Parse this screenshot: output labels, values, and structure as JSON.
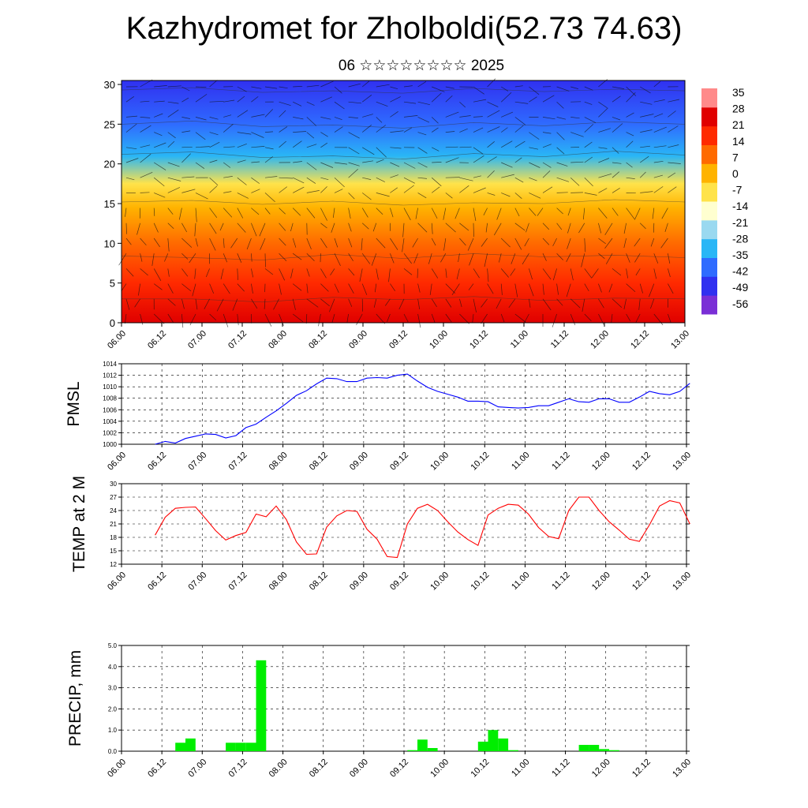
{
  "title": "Kazhydromet for Zholboldi(52.73 74.63)",
  "subtitle": "06 ☆☆☆☆☆☆☆☆ 2025",
  "chart_data": [
    {
      "type": "heatmap",
      "yticks": [
        "0",
        "5",
        "10",
        "15",
        "20",
        "25",
        "30"
      ],
      "ylim": [
        0,
        30.5
      ],
      "xticks": [
        "06.00",
        "06.12",
        "07.00",
        "07.12",
        "08.00",
        "08.12",
        "09.00",
        "09.12",
        "10.00",
        "10.12",
        "11.00",
        "11.12",
        "12.00",
        "12.12",
        "13.00"
      ],
      "colorbar_labels": [
        "35",
        "28",
        "21",
        "14",
        "7",
        "0",
        "-7",
        "-14",
        "-21",
        "-28",
        "-35",
        "-42",
        "-49",
        "-56"
      ],
      "colormap": [
        "#7a2fd6",
        "#3030f0",
        "#2f6bff",
        "#29b6f6",
        "#9ad9f0",
        "#ffffd0",
        "#ffe34a",
        "#ffb300",
        "#ff6a00",
        "#ff2a00",
        "#e00000",
        "#ff8a8a"
      ],
      "isotherm_temps": [
        14,
        0,
        -14,
        -28,
        -42,
        -56
      ],
      "isotherm_heights": [
        [
          3,
          8.4,
          15.2,
          21.2,
          25,
          29.3
        ],
        [
          3,
          8.2,
          15.4,
          21.5,
          25.4,
          29.6
        ],
        [
          2.6,
          7.9,
          14.9,
          20.8,
          24.7,
          29
        ],
        [
          3.2,
          8.6,
          15.3,
          21,
          24.9,
          29.2
        ],
        [
          2.9,
          8.1,
          14.8,
          20.6,
          24.5,
          28.9
        ],
        [
          3.3,
          8.7,
          15.1,
          21.3,
          25.2,
          29.5
        ],
        [
          2.8,
          8.3,
          15,
          20.9,
          24.8,
          29.1
        ],
        [
          3.1,
          8.5,
          15.5,
          21.6,
          25.3,
          29.4
        ],
        [
          3,
          8.2,
          15.2,
          21.1,
          25,
          29.2
        ]
      ]
    },
    {
      "type": "line",
      "ylabel": "PMSL",
      "ylim": [
        1000,
        1014
      ],
      "yticks": [
        "1000",
        "1002",
        "1004",
        "1006",
        "1008",
        "1010",
        "1012",
        "1014"
      ],
      "xticks": [
        "06.00",
        "06.12",
        "07.00",
        "07.12",
        "08.00",
        "08.12",
        "09.00",
        "09.12",
        "10.00",
        "10.12",
        "11.00",
        "11.12",
        "12.00",
        "12.12",
        "13.00"
      ],
      "color": "#0000ff",
      "x_hours": [
        0,
        3,
        6,
        9,
        12,
        15,
        18,
        21,
        24,
        27,
        30,
        33,
        36,
        39,
        42,
        45,
        48,
        51,
        54,
        57,
        60,
        63,
        66,
        69,
        72,
        75,
        78,
        81,
        84,
        87,
        90,
        93,
        96,
        99,
        102,
        105,
        108,
        111,
        114,
        117,
        120,
        123,
        126,
        129,
        132,
        135,
        138,
        141,
        144,
        147,
        150,
        153,
        156,
        159
      ],
      "values": [
        1000,
        1000.5,
        1000.2,
        1001,
        1001.4,
        1001.8,
        1001.7,
        1001.1,
        1001.5,
        1002.9,
        1003.5,
        1004.7,
        1005.8,
        1007.1,
        1008.5,
        1009.3,
        1010.5,
        1011.5,
        1011.4,
        1010.9,
        1010.9,
        1011.5,
        1011.6,
        1011.5,
        1012,
        1012.2,
        1011,
        1009.9,
        1009.2,
        1008.7,
        1008.2,
        1007.5,
        1007.5,
        1007.4,
        1006.5,
        1006.4,
        1006.3,
        1006.4,
        1006.7,
        1006.7,
        1007.3,
        1007.9,
        1007.4,
        1007.3,
        1007.9,
        1007.9,
        1007.3,
        1007.3,
        1008.2,
        1009.2,
        1008.8,
        1008.6,
        1009.2,
        1010.6
      ]
    },
    {
      "type": "line",
      "ylabel": "TEMP at 2 M",
      "ylim": [
        12,
        30
      ],
      "yticks": [
        "12",
        "15",
        "18",
        "21",
        "24",
        "27",
        "30"
      ],
      "xticks": [
        "06.00",
        "06.12",
        "07.00",
        "07.12",
        "08.00",
        "08.12",
        "09.00",
        "09.12",
        "10.00",
        "10.12",
        "11.00",
        "11.12",
        "12.00",
        "12.12",
        "13.00"
      ],
      "color": "#ff0000",
      "x_hours": [
        0,
        3,
        6,
        9,
        12,
        15,
        18,
        21,
        24,
        27,
        30,
        33,
        36,
        39,
        42,
        45,
        48,
        51,
        54,
        57,
        60,
        63,
        66,
        69,
        72,
        75,
        78,
        81,
        84,
        87,
        90,
        93,
        96,
        99,
        102,
        105,
        108,
        111,
        114,
        117,
        120,
        123,
        126,
        129,
        132,
        135,
        138,
        141,
        144,
        147,
        150,
        153,
        156,
        159
      ],
      "values": [
        18.5,
        22.5,
        24.5,
        24.7,
        24.8,
        22.2,
        19.5,
        17.4,
        18.4,
        19.1,
        23.2,
        22.6,
        25,
        22,
        17,
        14.2,
        14.3,
        20.3,
        22.8,
        24,
        23.8,
        19.8,
        17.6,
        13.7,
        13.5,
        21,
        24.5,
        25.4,
        24,
        21.5,
        19.2,
        17.5,
        16.2,
        23,
        24.5,
        25.4,
        25.2,
        23.2,
        20.2,
        18.2,
        17.7,
        24,
        27,
        27,
        24,
        21.5,
        19.6,
        17.6,
        17.1,
        20.8,
        25,
        26.2,
        25.7,
        21
      ]
    },
    {
      "type": "bar",
      "ylabel": "PRECIP, mm",
      "ylim": [
        0,
        5
      ],
      "yticks": [
        "0.0",
        "1.0",
        "2.0",
        "3.0",
        "4.0",
        "5.0"
      ],
      "xticks": [
        "06.00",
        "06.12",
        "07.00",
        "07.12",
        "08.00",
        "08.12",
        "09.00",
        "09.12",
        "10.00",
        "10.12",
        "11.00",
        "11.12",
        "12.00",
        "12.12",
        "13.00"
      ],
      "color": "#00ee00",
      "x_hours": [
        6,
        9,
        21,
        24,
        27,
        30,
        75,
        78,
        81,
        96,
        99,
        102,
        105,
        126,
        129,
        132,
        135
      ],
      "values": [
        0.4,
        0.6,
        0.4,
        0.4,
        0.4,
        4.3,
        0.05,
        0.55,
        0.15,
        0.45,
        1,
        0.6,
        0.05,
        0.3,
        0.3,
        0.1,
        0.05
      ]
    }
  ]
}
